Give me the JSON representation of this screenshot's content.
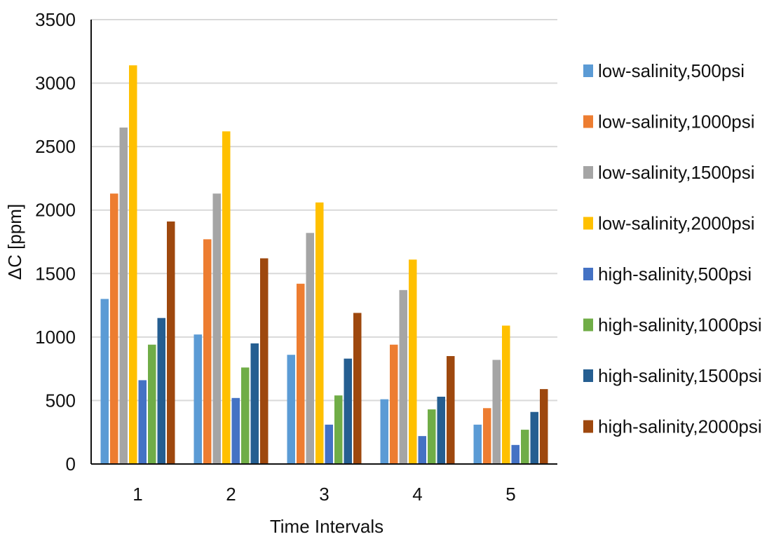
{
  "chart_data": {
    "type": "bar",
    "title": "",
    "xlabel": "Time Intervals",
    "ylabel": "ΔC [ppm]",
    "ylim": [
      0,
      3500
    ],
    "yticks": [
      0,
      500,
      1000,
      1500,
      2000,
      2500,
      3000,
      3500
    ],
    "categories": [
      "1",
      "2",
      "3",
      "4",
      "5"
    ],
    "grid": true,
    "legend_position": "right",
    "series": [
      {
        "name": "low-salinity,500psi",
        "color": "#5B9BD5",
        "values": [
          1300,
          1020,
          860,
          510,
          310
        ]
      },
      {
        "name": "low-salinity,1000psi",
        "color": "#ED7D31",
        "values": [
          2130,
          1770,
          1420,
          940,
          440
        ]
      },
      {
        "name": "low-salinity,1500psi",
        "color": "#A5A5A5",
        "values": [
          2650,
          2130,
          1820,
          1370,
          820
        ]
      },
      {
        "name": "low-salinity,2000psi",
        "color": "#FFC000",
        "values": [
          3140,
          2620,
          2060,
          1610,
          1090
        ]
      },
      {
        "name": "high-salinity,500psi",
        "color": "#4472C4",
        "values": [
          660,
          520,
          310,
          220,
          150
        ]
      },
      {
        "name": "high-salinity,1000psi",
        "color": "#70AD47",
        "values": [
          940,
          760,
          540,
          430,
          270
        ]
      },
      {
        "name": "high-salinity,1500psi",
        "color": "#255E91",
        "values": [
          1150,
          950,
          830,
          530,
          410
        ]
      },
      {
        "name": "high-salinity,2000psi",
        "color": "#9E480E",
        "values": [
          1910,
          1620,
          1190,
          850,
          590
        ]
      }
    ]
  }
}
